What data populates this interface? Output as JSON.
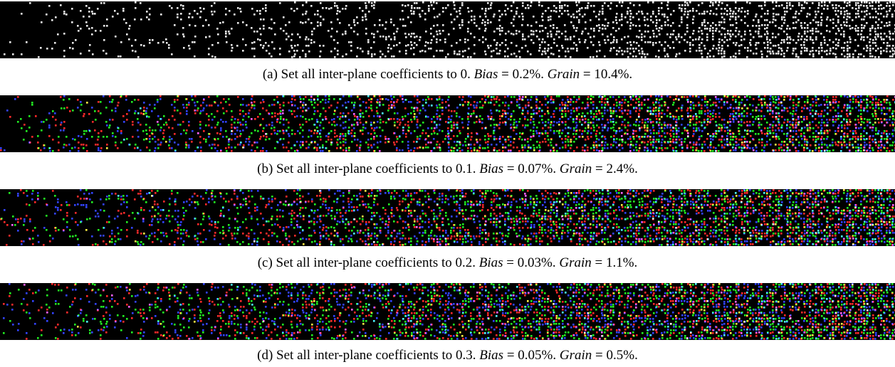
{
  "panels": [
    {
      "caption": "(a) Set all inter-plane coefficients to 0.",
      "term1": "Bias",
      "eq1": " = 0.2%.",
      "term2": "Grain",
      "eq2": " = 10.4%."
    },
    {
      "caption": "(b) Set all inter-plane coefficients to 0.1.",
      "term1": "Bias",
      "eq1": " = 0.07%.",
      "term2": "Grain",
      "eq2": " = 2.4%."
    },
    {
      "caption": "(c) Set all inter-plane coefficients to 0.2.",
      "term1": "Bias",
      "eq1": " = 0.03%.",
      "term2": "Grain",
      "eq2": " = 1.1%."
    },
    {
      "caption": "(d) Set all inter-plane coefficients to 0.3.",
      "term1": "Bias",
      "eq1": " = 0.05%.",
      "term2": "Grain",
      "eq2": " = 0.5%."
    }
  ]
}
